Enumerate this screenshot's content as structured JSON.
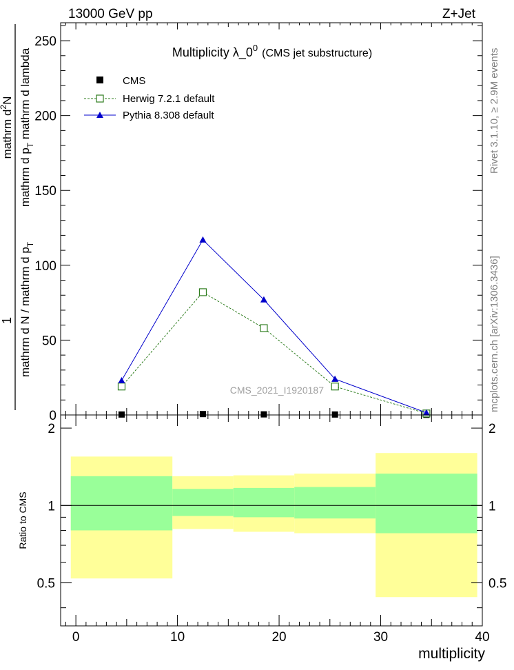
{
  "header": {
    "energy_label": "13000 GeV pp",
    "process_label": "Z+Jet"
  },
  "side_labels": {
    "rivet": "Rivet 3.1.10, ≥ 2.9M events",
    "mcplots": "mcplots.cern.ch [arXiv:1306.3436]"
  },
  "chart_data": [
    {
      "type": "line",
      "title_main": "Multiplicity  λ_0",
      "title_sup": "0",
      "title_paren": "(CMS jet substructure)",
      "watermark": "CMS_2021_I1920187",
      "ylabel_numerator": "1",
      "ylabel_denominator": "mathrm d N / mathrm d p",
      "ylabel_denominator_sub": "T",
      "ylabel_numerator_main": "mathrm d",
      "ylabel_numerator_sup": "2",
      "ylabel_numerator_rest": "N",
      "ylabel_denominator_right": "mathrm d p",
      "ylabel_denominator_right_sub": "T",
      "ylabel_denominator_right_rest": " mathrm d lambda",
      "xlim": [
        -1.5,
        40
      ],
      "ylim": [
        0,
        262
      ],
      "yticks": [
        0,
        50,
        100,
        150,
        200,
        250
      ],
      "ytick_labels": [
        "0",
        "50",
        "100",
        "150",
        "200",
        "250"
      ],
      "legend_position": "top-left",
      "series": [
        {
          "name": "CMS",
          "color": "#000000",
          "marker": "filled-square",
          "x": [
            4.5,
            12.5,
            18.5,
            25.5,
            34.5
          ],
          "y": [
            0.3,
            0.6,
            0.4,
            0.3,
            0.1
          ]
        },
        {
          "name": "Herwig 7.2.1 default",
          "color": "#2e7d1e",
          "marker": "open-square",
          "line": "dashed",
          "x": [
            4.5,
            12.5,
            18.5,
            25.5,
            34.5
          ],
          "y": [
            19,
            82,
            58,
            19,
            1
          ]
        },
        {
          "name": "Pythia 8.308 default",
          "color": "#0000cc",
          "marker": "filled-triangle",
          "line": "solid",
          "x": [
            4.5,
            12.5,
            18.5,
            25.5,
            34.5
          ],
          "y": [
            23,
            117,
            77,
            24,
            1.5
          ]
        }
      ]
    },
    {
      "type": "area",
      "ylabel": "Ratio to CMS",
      "xlabel": "multiplicity",
      "xlim": [
        -1.5,
        40
      ],
      "ylim": [
        0.34,
        2.25
      ],
      "yticks": [
        0.5,
        1,
        2
      ],
      "ytick_labels": [
        "0.5",
        "1",
        "2"
      ],
      "xticks": [
        0,
        10,
        20,
        30,
        40
      ],
      "xtick_labels": [
        "0",
        "10",
        "20",
        "30",
        "40"
      ],
      "reference_line": 1,
      "bands": [
        {
          "x0": -0.5,
          "x1": 9.5,
          "stat_lo": 0.8,
          "stat_hi": 1.3,
          "total_lo": 0.52,
          "total_hi": 1.55
        },
        {
          "x0": 9.5,
          "x1": 15.5,
          "stat_lo": 0.91,
          "stat_hi": 1.16,
          "total_lo": 0.81,
          "total_hi": 1.3
        },
        {
          "x0": 15.5,
          "x1": 21.5,
          "stat_lo": 0.9,
          "stat_hi": 1.17,
          "total_lo": 0.79,
          "total_hi": 1.31
        },
        {
          "x0": 21.5,
          "x1": 29.5,
          "stat_lo": 0.89,
          "stat_hi": 1.18,
          "total_lo": 0.78,
          "total_hi": 1.33
        },
        {
          "x0": 29.5,
          "x1": 39.5,
          "stat_lo": 0.78,
          "stat_hi": 1.33,
          "total_lo": 0.44,
          "total_hi": 1.6
        }
      ],
      "band_colors": {
        "stat": "#99ff99",
        "total": "#ffff99"
      }
    }
  ]
}
